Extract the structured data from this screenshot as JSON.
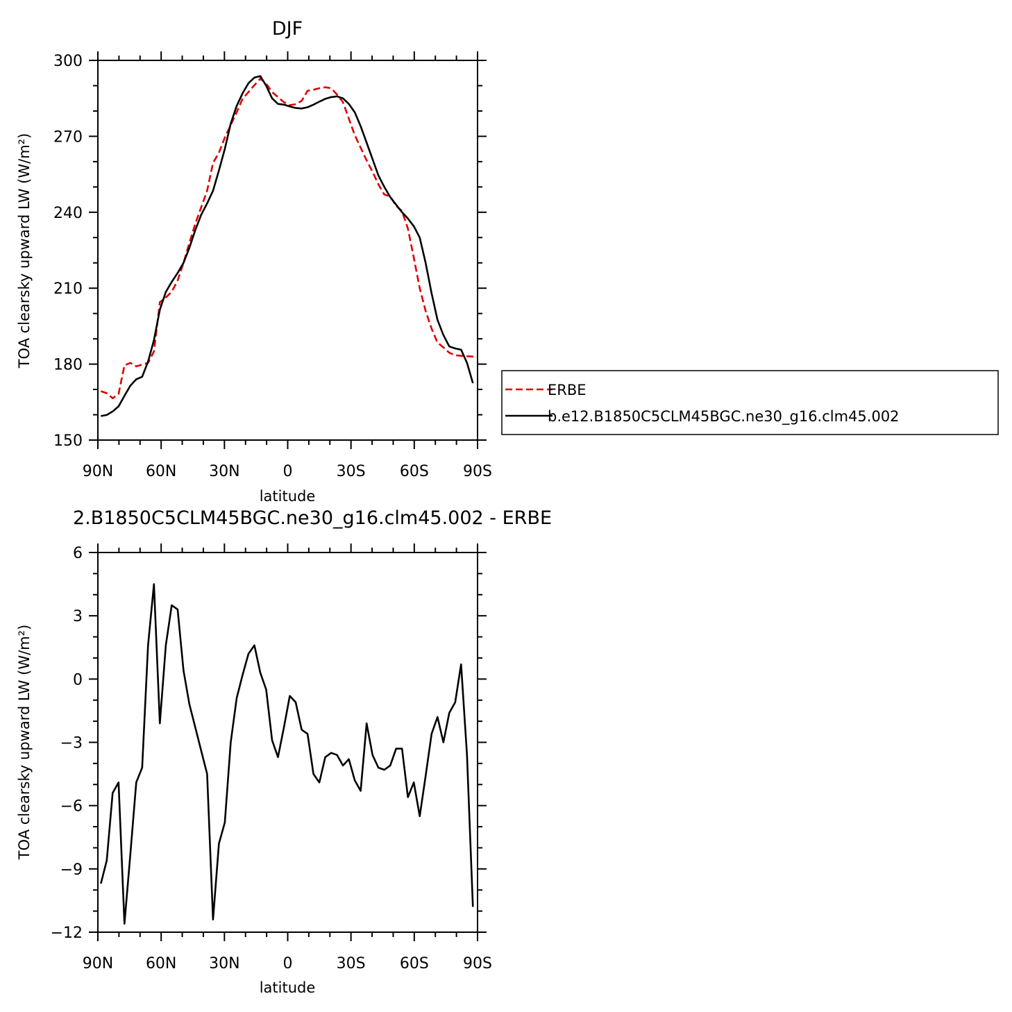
{
  "chart_data": [
    {
      "type": "line",
      "title": "DJF",
      "xlabel": "latitude",
      "ylabel": "TOA clearsky upward LW (W/m²)",
      "xlim": [
        90,
        -90
      ],
      "ylim": [
        150,
        300
      ],
      "x_ticks": [
        {
          "value": 90,
          "label": "90N"
        },
        {
          "value": 60,
          "label": "60N"
        },
        {
          "value": 30,
          "label": "30N"
        },
        {
          "value": 0,
          "label": "0"
        },
        {
          "value": -30,
          "label": "30S"
        },
        {
          "value": -60,
          "label": "60S"
        },
        {
          "value": -90,
          "label": "90S"
        }
      ],
      "y_ticks": [
        {
          "value": 150,
          "label": "150"
        },
        {
          "value": 180,
          "label": "180"
        },
        {
          "value": 210,
          "label": "210"
        },
        {
          "value": 240,
          "label": "240"
        },
        {
          "value": 270,
          "label": "270"
        },
        {
          "value": 300,
          "label": "300"
        }
      ],
      "legend_position": "right",
      "series": [
        {
          "name": "ERBE",
          "color": "#e00000",
          "dash": "dashed",
          "x": [
            88.6,
            85.8,
            83,
            80.2,
            77.4,
            74.6,
            71.8,
            69,
            66.2,
            63.4,
            60.6,
            57.8,
            55,
            52.2,
            49.4,
            46.6,
            43.8,
            41,
            38.2,
            35.4,
            32.6,
            29.8,
            27,
            24.2,
            21.4,
            18.6,
            15.8,
            13,
            10.2,
            7.4,
            4.6,
            1.8,
            -1,
            -3.8,
            -6.6,
            -9.4,
            -12.2,
            -15,
            -17.8,
            -20.6,
            -23.4,
            -26.2,
            -29,
            -31.8,
            -34.6,
            -37.4,
            -40.2,
            -43,
            -45.8,
            -48.6,
            -51.4,
            -54.2,
            -57,
            -59.8,
            -62.6,
            -65.4,
            -68.2,
            -71,
            -73.8,
            -76.6,
            -79.4,
            -82.2,
            -85,
            -87.8,
            -88.6
          ],
          "y": [
            169.3,
            168.5,
            166.5,
            168.2,
            179.5,
            180.5,
            179.1,
            179.8,
            180.5,
            185,
            204.5,
            206.3,
            208.6,
            213,
            220,
            228,
            235.5,
            242,
            248.5,
            259.5,
            263.5,
            269.5,
            274.5,
            279.5,
            284.8,
            287.5,
            290.2,
            292.8,
            290.8,
            287.5,
            285.5,
            283.5,
            282.3,
            282.7,
            284,
            288,
            288.4,
            289,
            289.4,
            289,
            286.5,
            283.5,
            277,
            270.5,
            265.5,
            260.5,
            256,
            251,
            247,
            246.3,
            242.5,
            240.5,
            233.5,
            222,
            210,
            201,
            194,
            188.5,
            186.6,
            184.5,
            183.5,
            183.3,
            183.1,
            183,
            183
          ]
        },
        {
          "name": "b.e12.B1850C5CLM45BGC.ne30_g16.clm45.002",
          "color": "#000000",
          "dash": "solid",
          "x": [
            88.6,
            85.8,
            83,
            80.2,
            77.4,
            74.6,
            71.8,
            69,
            66.2,
            63.4,
            60.6,
            57.8,
            55,
            52.2,
            49.4,
            46.6,
            43.8,
            41,
            38.2,
            35.4,
            32.6,
            29.8,
            27,
            24.2,
            21.4,
            18.6,
            15.8,
            13,
            10.2,
            7.4,
            4.6,
            1.8,
            -1,
            -3.8,
            -6.6,
            -9.4,
            -12.2,
            -15,
            -17.8,
            -20.6,
            -23.4,
            -26.2,
            -29,
            -31.8,
            -34.6,
            -37.4,
            -40.2,
            -43,
            -45.8,
            -48.6,
            -51.4,
            -54.2,
            -57,
            -59.8,
            -62.6,
            -65.4,
            -68.2,
            -71,
            -73.8,
            -76.6,
            -79.4,
            -82.2,
            -85,
            -87.8
          ],
          "y": [
            159.5,
            159.9,
            161.3,
            163.3,
            167.5,
            171.5,
            174,
            175,
            181,
            189.5,
            201.5,
            208.5,
            212.5,
            216,
            220,
            226,
            233,
            239,
            243.5,
            248.5,
            256.5,
            265,
            275,
            282,
            287,
            291,
            293.2,
            293.8,
            290,
            285,
            282.8,
            282.5,
            281.8,
            281.2,
            281,
            281.5,
            282.5,
            283.7,
            284.8,
            285.5,
            285.8,
            285,
            282.8,
            279.5,
            274,
            267.5,
            261,
            254.5,
            250,
            246,
            243,
            240,
            237.5,
            234.5,
            230,
            220,
            208,
            197.5,
            191.5,
            187,
            186.2,
            185.7,
            180.5,
            172.5
          ]
        }
      ]
    },
    {
      "type": "line",
      "title": "2.B1850C5CLM45BGC.ne30_g16.clm45.002 - ERBE",
      "xlabel": "latitude",
      "ylabel": "TOA clearsky upward LW (W/m²)",
      "xlim": [
        90,
        -90
      ],
      "ylim": [
        -12,
        6
      ],
      "x_ticks": [
        {
          "value": 90,
          "label": "90N"
        },
        {
          "value": 60,
          "label": "60N"
        },
        {
          "value": 30,
          "label": "30N"
        },
        {
          "value": 0,
          "label": "0"
        },
        {
          "value": -30,
          "label": "30S"
        },
        {
          "value": -60,
          "label": "60S"
        },
        {
          "value": -90,
          "label": "90S"
        }
      ],
      "y_ticks": [
        {
          "value": -12,
          "label": "−12"
        },
        {
          "value": -9,
          "label": "−9"
        },
        {
          "value": -6,
          "label": "−6"
        },
        {
          "value": -3,
          "label": "−3"
        },
        {
          "value": 0,
          "label": "0"
        },
        {
          "value": 3,
          "label": "3"
        },
        {
          "value": 6,
          "label": "6"
        }
      ],
      "series": [
        {
          "color": "#000000",
          "x": [
            88.6,
            85.8,
            83,
            80.2,
            77.4,
            74.6,
            71.8,
            69,
            66.2,
            63.4,
            60.6,
            57.8,
            55,
            52.2,
            49.4,
            46.6,
            43.8,
            41,
            38.2,
            35.4,
            32.6,
            29.8,
            27,
            24.2,
            21.4,
            18.6,
            15.8,
            13,
            10.2,
            7.4,
            4.6,
            1.8,
            -1,
            -3.8,
            -6.6,
            -9.4,
            -12.2,
            -15,
            -17.8,
            -20.6,
            -23.4,
            -26.2,
            -29,
            -31.8,
            -34.6,
            -37.4,
            -40.2,
            -43,
            -45.8,
            -48.6,
            -51.4,
            -54.2,
            -57,
            -59.8,
            -62.6,
            -65.4,
            -68.2,
            -71,
            -73.8,
            -76.6,
            -79.4,
            -82.2,
            -85,
            -87.8
          ],
          "y": [
            -9.7,
            -8.6,
            -5.4,
            -4.9,
            -11.6,
            -8.3,
            -4.9,
            -4.2,
            1.6,
            4.5,
            -2.1,
            1.6,
            3.5,
            3.3,
            0.4,
            -1.2,
            -2.3,
            -3.4,
            -4.5,
            -11.4,
            -7.8,
            -6.8,
            -3,
            -0.9,
            0.2,
            1.2,
            1.6,
            0.3,
            -0.5,
            -2.9,
            -3.7,
            -2.3,
            -0.8,
            -1.1,
            -2.4,
            -2.6,
            -4.5,
            -4.9,
            -3.7,
            -3.5,
            -3.6,
            -4.1,
            -3.8,
            -4.8,
            -5.3,
            -2.1,
            -3.6,
            -4.2,
            -4.3,
            -4.1,
            -3.3,
            -3.3,
            -5.6,
            -4.9,
            -6.5,
            -4.6,
            -2.6,
            -1.8,
            -3,
            -1.6,
            -1.1,
            0.7,
            -3.6,
            -10.8
          ]
        }
      ]
    }
  ]
}
